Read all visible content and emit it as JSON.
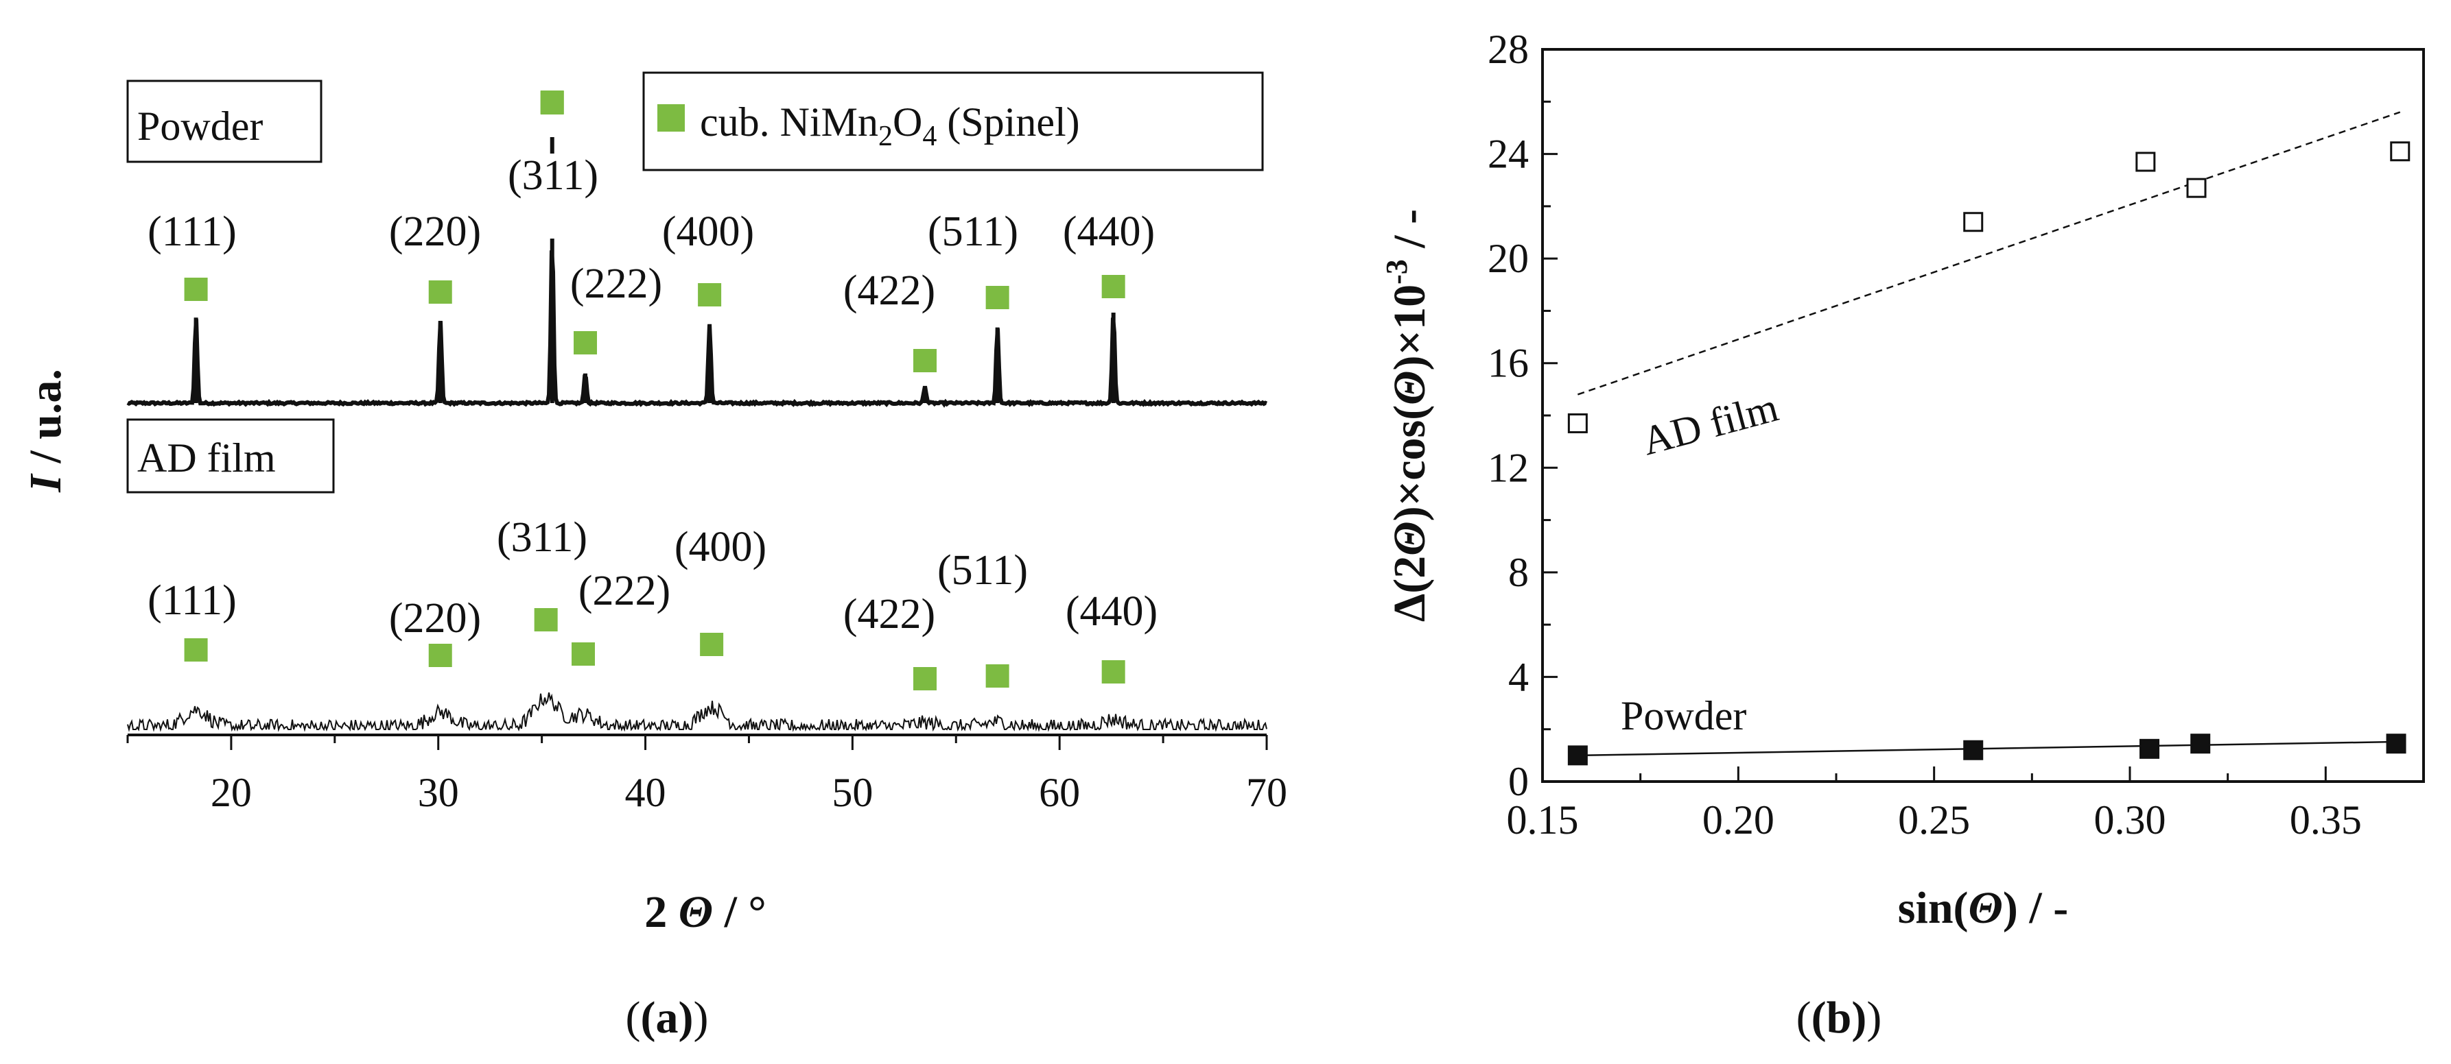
{
  "colors": {
    "marker_green": "#7dbb42",
    "line": "#111111",
    "background": "#ffffff"
  },
  "chart_data": [
    {
      "panel": "(a)",
      "type": "line",
      "title": "",
      "xlabel_prefix": "2",
      "xlabel_symbol": "Θ",
      "xlabel_suffix": " / °",
      "ylabel_symbol": "I",
      "ylabel_suffix": " / u.a.",
      "xlim": [
        15,
        70
      ],
      "xticks": [
        20,
        30,
        40,
        50,
        60,
        70
      ],
      "legend": {
        "label_prefix": "cub. NiMn",
        "sub1": "2",
        "label_mid": "O",
        "sub2": "4",
        "label_suffix": " (Spinel)",
        "placement": "top-right"
      },
      "series": [
        {
          "name": "Powder",
          "peaks": [
            {
              "hkl": "(111)",
              "x": 18.3,
              "height": 0.52
            },
            {
              "hkl": "(220)",
              "x": 30.1,
              "height": 0.5
            },
            {
              "hkl": "(311)",
              "x": 35.5,
              "height": 1.0
            },
            {
              "hkl": "(222)",
              "x": 37.1,
              "height": 0.18
            },
            {
              "hkl": "(400)",
              "x": 43.1,
              "height": 0.48
            },
            {
              "hkl": "(422)",
              "x": 53.5,
              "height": 0.1
            },
            {
              "hkl": "(511)",
              "x": 57.0,
              "height": 0.46
            },
            {
              "hkl": "(440)",
              "x": 62.6,
              "height": 0.55
            }
          ]
        },
        {
          "name": "AD film",
          "peaks": [
            {
              "hkl": "(111)",
              "x": 18.3,
              "height": 0.35
            },
            {
              "hkl": "(220)",
              "x": 30.1,
              "height": 0.3
            },
            {
              "hkl": "(311)",
              "x": 35.2,
              "height": 0.6
            },
            {
              "hkl": "(222)",
              "x": 37.0,
              "height": 0.25
            },
            {
              "hkl": "(400)",
              "x": 43.2,
              "height": 0.4
            },
            {
              "hkl": "(422)",
              "x": 53.5,
              "height": 0.08
            },
            {
              "hkl": "(511)",
              "x": 57.0,
              "height": 0.1
            },
            {
              "hkl": "(440)",
              "x": 62.6,
              "height": 0.15
            }
          ]
        }
      ]
    },
    {
      "panel": "(b)",
      "type": "scatter",
      "title": "",
      "xlabel_prefix": "sin(",
      "xlabel_symbol": "Θ",
      "xlabel_suffix": ") / -",
      "ylabel_a": "Δ(2",
      "ylabel_sym1": "Θ",
      "ylabel_b": ")×cos(",
      "ylabel_sym2": "Θ",
      "ylabel_c": ")×10",
      "ylabel_exp": "-3",
      "ylabel_d": " / -",
      "xlim": [
        0.15,
        0.375
      ],
      "ylim": [
        0,
        28
      ],
      "xticks": [
        0.15,
        0.2,
        0.25,
        0.3,
        0.35
      ],
      "xtick_labels": [
        "0.15",
        "0.20",
        "0.25",
        "0.30",
        "0.35"
      ],
      "yticks": [
        0,
        4,
        8,
        12,
        16,
        20,
        24,
        28
      ],
      "yticklabels": [
        "0",
        "4",
        "8",
        "12",
        "16",
        "20",
        "24",
        "28"
      ],
      "series": [
        {
          "name": "AD film",
          "marker": "open-square",
          "x": [
            0.159,
            0.26,
            0.304,
            0.317,
            0.369
          ],
          "y": [
            13.7,
            21.4,
            23.7,
            22.7,
            24.1
          ],
          "fit": {
            "style": "dashed",
            "x": [
              0.159,
              0.369
            ],
            "y": [
              14.8,
              25.6
            ]
          }
        },
        {
          "name": "Powder",
          "marker": "filled-square",
          "x": [
            0.159,
            0.26,
            0.305,
            0.318,
            0.368
          ],
          "y": [
            1.0,
            1.2,
            1.25,
            1.45,
            1.45
          ],
          "fit": {
            "style": "solid",
            "x": [
              0.159,
              0.368
            ],
            "y": [
              1.0,
              1.52
            ]
          }
        }
      ]
    }
  ]
}
